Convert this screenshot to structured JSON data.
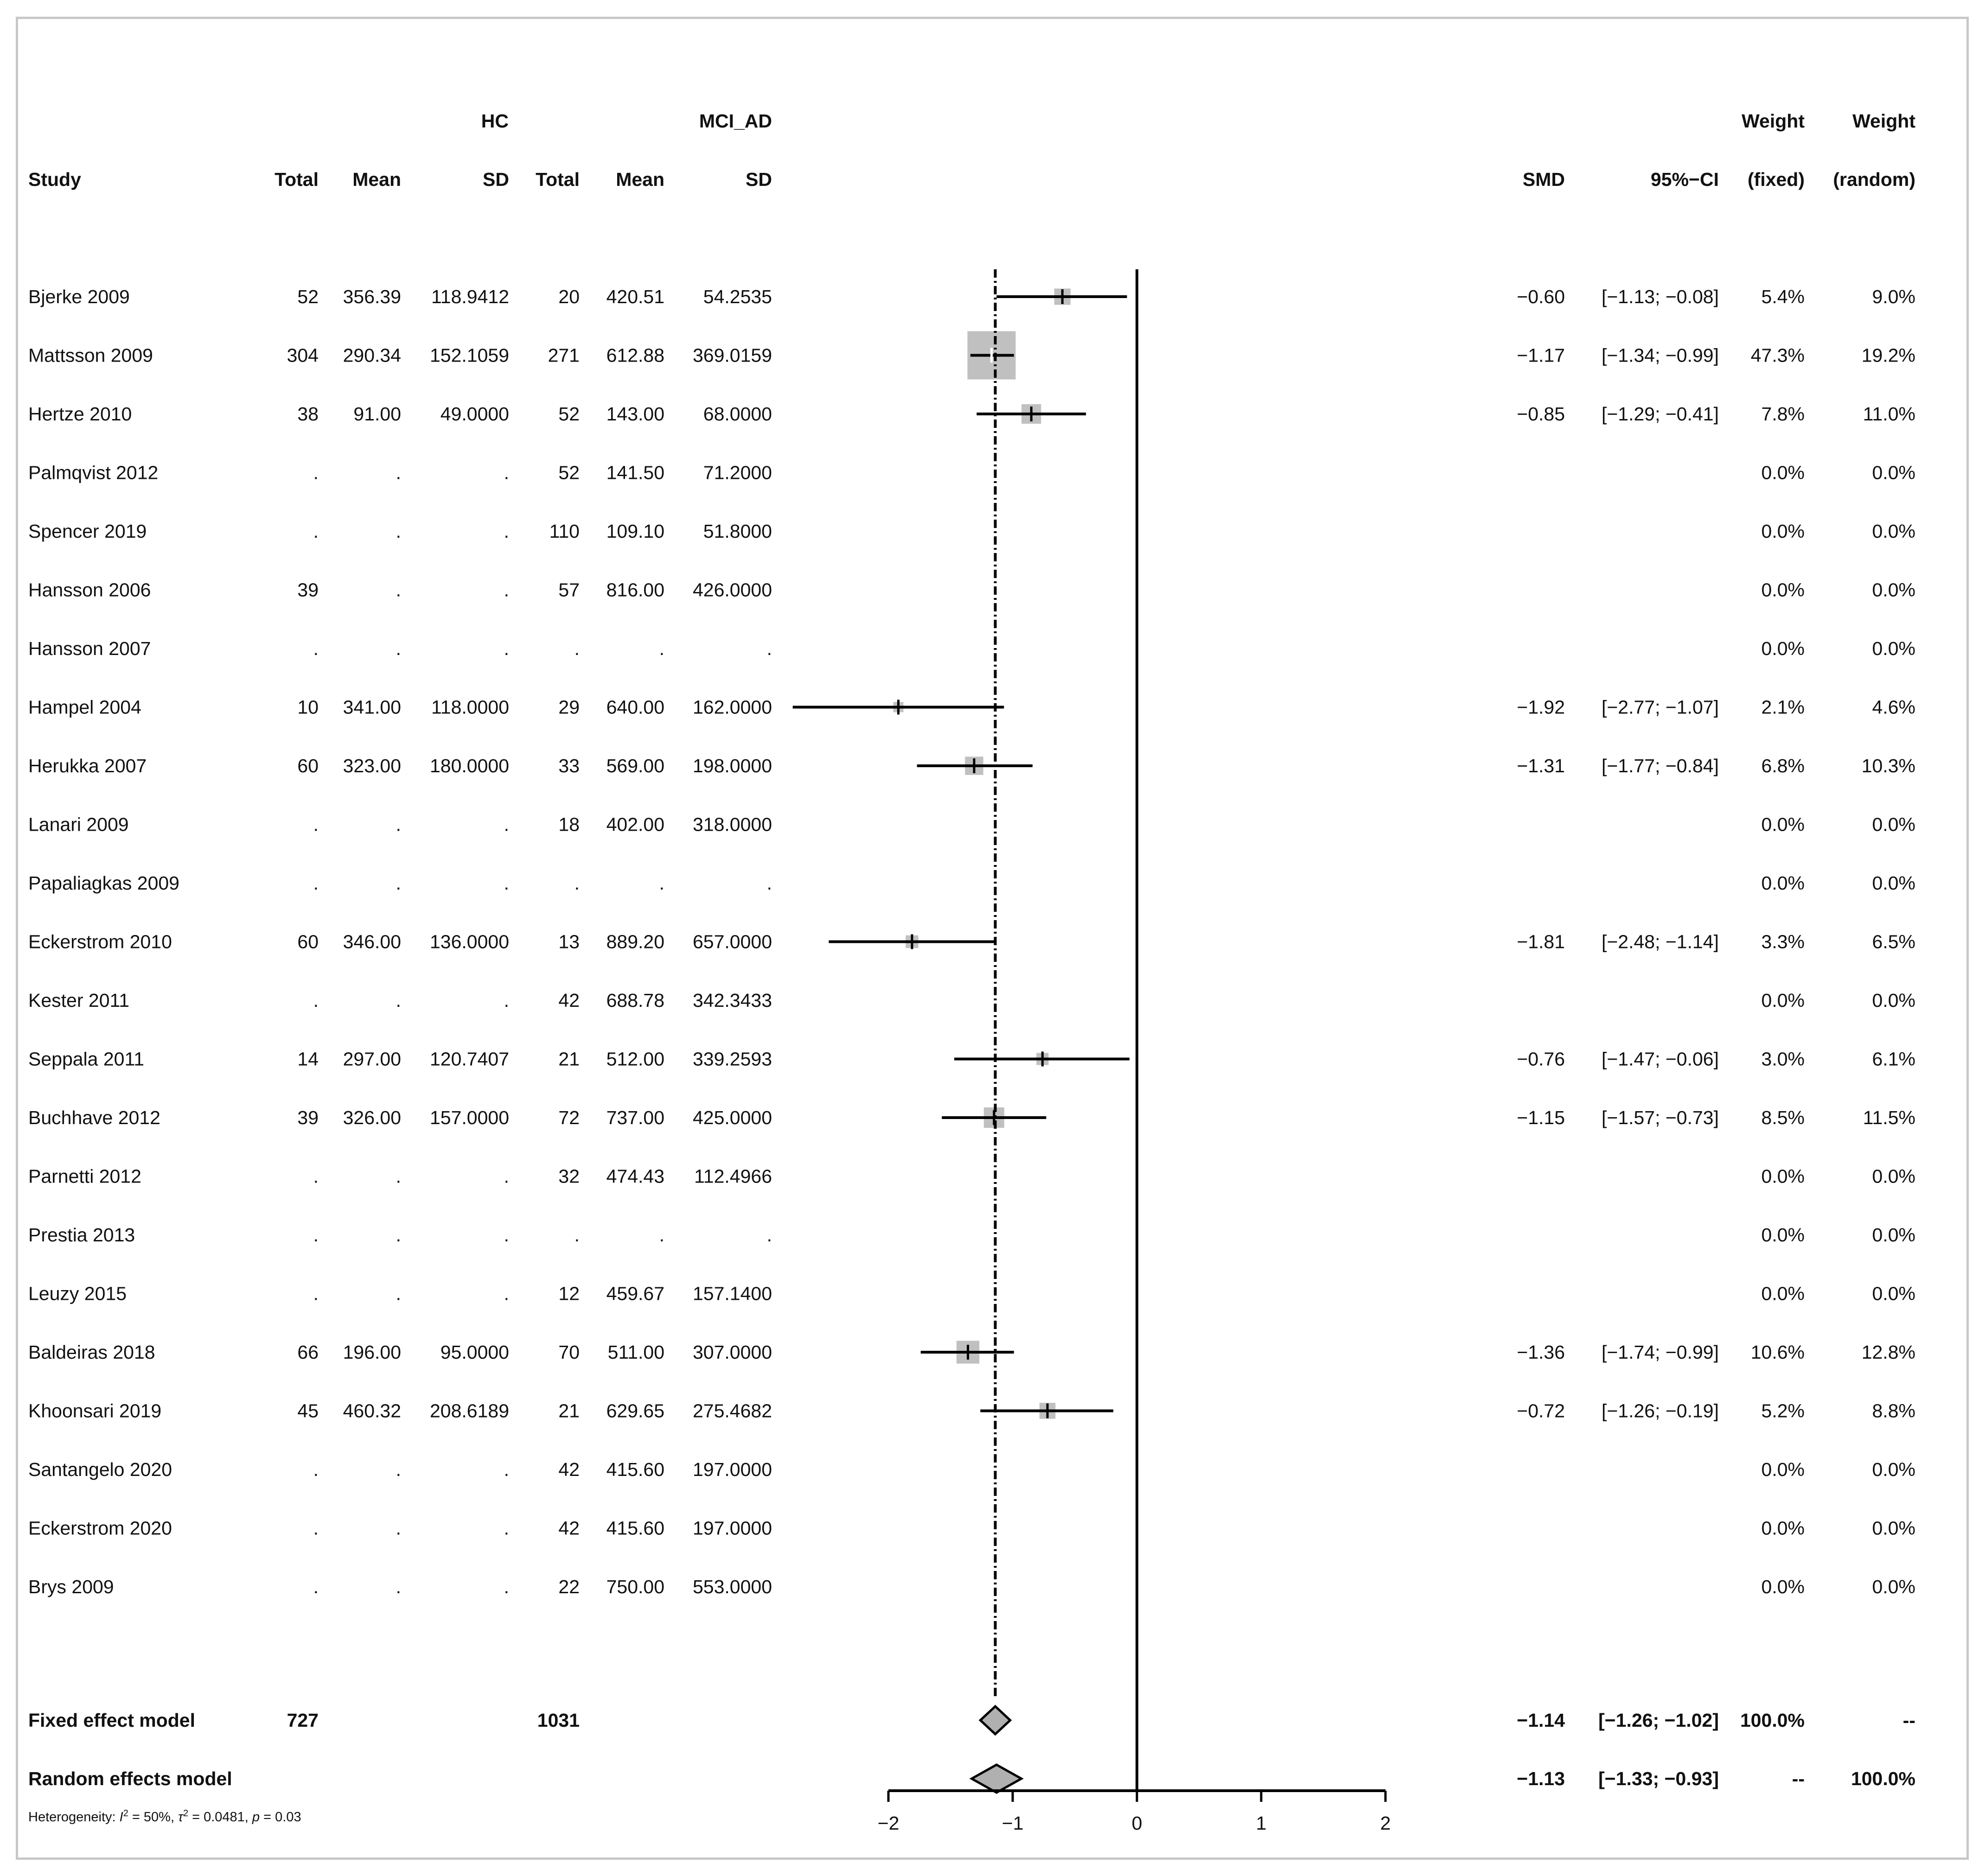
{
  "chart_data": {
    "type": "forest",
    "group1": "HC",
    "group2": "MCI_AD",
    "headers": {
      "study": "Study",
      "total": "Total",
      "mean": "Mean",
      "sd": "SD",
      "smd": "SMD",
      "ci": "95%−CI",
      "weight": "Weight",
      "fixed": "(fixed)",
      "random": "(random)"
    },
    "studies": [
      {
        "name": "Bjerke 2009",
        "hc_total": "52",
        "hc_mean": "356.39",
        "hc_sd": "118.9412",
        "ad_total": "20",
        "ad_mean": "420.51",
        "ad_sd": "54.2535",
        "smd_text": "−0.60",
        "ci_text": "[−1.13; −0.08]",
        "w_fixed": "5.4%",
        "w_random": "9.0%",
        "smd": -0.6,
        "lo": -1.13,
        "hi": -0.08,
        "weight": 5.4
      },
      {
        "name": "Mattsson 2009",
        "hc_total": "304",
        "hc_mean": "290.34",
        "hc_sd": "152.1059",
        "ad_total": "271",
        "ad_mean": "612.88",
        "ad_sd": "369.0159",
        "smd_text": "−1.17",
        "ci_text": "[−1.34; −0.99]",
        "w_fixed": "47.3%",
        "w_random": "19.2%",
        "smd": -1.17,
        "lo": -1.34,
        "hi": -0.99,
        "weight": 47.3
      },
      {
        "name": "Hertze 2010",
        "hc_total": "38",
        "hc_mean": "91.00",
        "hc_sd": "49.0000",
        "ad_total": "52",
        "ad_mean": "143.00",
        "ad_sd": "68.0000",
        "smd_text": "−0.85",
        "ci_text": "[−1.29; −0.41]",
        "w_fixed": "7.8%",
        "w_random": "11.0%",
        "smd": -0.85,
        "lo": -1.29,
        "hi": -0.41,
        "weight": 7.8
      },
      {
        "name": "Palmqvist 2012",
        "hc_total": ".",
        "hc_mean": ".",
        "hc_sd": ".",
        "ad_total": "52",
        "ad_mean": "141.50",
        "ad_sd": "71.2000",
        "smd_text": "",
        "ci_text": "",
        "w_fixed": "0.0%",
        "w_random": "0.0%"
      },
      {
        "name": "Spencer 2019",
        "hc_total": ".",
        "hc_mean": ".",
        "hc_sd": ".",
        "ad_total": "110",
        "ad_mean": "109.10",
        "ad_sd": "51.8000",
        "smd_text": "",
        "ci_text": "",
        "w_fixed": "0.0%",
        "w_random": "0.0%"
      },
      {
        "name": "Hansson 2006",
        "hc_total": "39",
        "hc_mean": ".",
        "hc_sd": ".",
        "ad_total": "57",
        "ad_mean": "816.00",
        "ad_sd": "426.0000",
        "smd_text": "",
        "ci_text": "",
        "w_fixed": "0.0%",
        "w_random": "0.0%"
      },
      {
        "name": "Hansson 2007",
        "hc_total": ".",
        "hc_mean": ".",
        "hc_sd": ".",
        "ad_total": ".",
        "ad_mean": ".",
        "ad_sd": ".",
        "smd_text": "",
        "ci_text": "",
        "w_fixed": "0.0%",
        "w_random": "0.0%"
      },
      {
        "name": "Hampel 2004",
        "hc_total": "10",
        "hc_mean": "341.00",
        "hc_sd": "118.0000",
        "ad_total": "29",
        "ad_mean": "640.00",
        "ad_sd": "162.0000",
        "smd_text": "−1.92",
        "ci_text": "[−2.77; −1.07]",
        "w_fixed": "2.1%",
        "w_random": "4.6%",
        "smd": -1.92,
        "lo": -2.77,
        "hi": -1.07,
        "weight": 2.1
      },
      {
        "name": "Herukka 2007",
        "hc_total": "60",
        "hc_mean": "323.00",
        "hc_sd": "180.0000",
        "ad_total": "33",
        "ad_mean": "569.00",
        "ad_sd": "198.0000",
        "smd_text": "−1.31",
        "ci_text": "[−1.77; −0.84]",
        "w_fixed": "6.8%",
        "w_random": "10.3%",
        "smd": -1.31,
        "lo": -1.77,
        "hi": -0.84,
        "weight": 6.8
      },
      {
        "name": "Lanari 2009",
        "hc_total": ".",
        "hc_mean": ".",
        "hc_sd": ".",
        "ad_total": "18",
        "ad_mean": "402.00",
        "ad_sd": "318.0000",
        "smd_text": "",
        "ci_text": "",
        "w_fixed": "0.0%",
        "w_random": "0.0%"
      },
      {
        "name": "Papaliagkas 2009",
        "hc_total": ".",
        "hc_mean": ".",
        "hc_sd": ".",
        "ad_total": ".",
        "ad_mean": ".",
        "ad_sd": ".",
        "smd_text": "",
        "ci_text": "",
        "w_fixed": "0.0%",
        "w_random": "0.0%"
      },
      {
        "name": "Eckerstrom 2010",
        "hc_total": "60",
        "hc_mean": "346.00",
        "hc_sd": "136.0000",
        "ad_total": "13",
        "ad_mean": "889.20",
        "ad_sd": "657.0000",
        "smd_text": "−1.81",
        "ci_text": "[−2.48; −1.14]",
        "w_fixed": "3.3%",
        "w_random": "6.5%",
        "smd": -1.81,
        "lo": -2.48,
        "hi": -1.14,
        "weight": 3.3
      },
      {
        "name": "Kester 2011",
        "hc_total": ".",
        "hc_mean": ".",
        "hc_sd": ".",
        "ad_total": "42",
        "ad_mean": "688.78",
        "ad_sd": "342.3433",
        "smd_text": "",
        "ci_text": "",
        "w_fixed": "0.0%",
        "w_random": "0.0%"
      },
      {
        "name": "Seppala 2011",
        "hc_total": "14",
        "hc_mean": "297.00",
        "hc_sd": "120.7407",
        "ad_total": "21",
        "ad_mean": "512.00",
        "ad_sd": "339.2593",
        "smd_text": "−0.76",
        "ci_text": "[−1.47; −0.06]",
        "w_fixed": "3.0%",
        "w_random": "6.1%",
        "smd": -0.76,
        "lo": -1.47,
        "hi": -0.06,
        "weight": 3.0
      },
      {
        "name": "Buchhave 2012",
        "hc_total": "39",
        "hc_mean": "326.00",
        "hc_sd": "157.0000",
        "ad_total": "72",
        "ad_mean": "737.00",
        "ad_sd": "425.0000",
        "smd_text": "−1.15",
        "ci_text": "[−1.57; −0.73]",
        "w_fixed": "8.5%",
        "w_random": "11.5%",
        "smd": -1.15,
        "lo": -1.57,
        "hi": -0.73,
        "weight": 8.5
      },
      {
        "name": "Parnetti 2012",
        "hc_total": ".",
        "hc_mean": ".",
        "hc_sd": ".",
        "ad_total": "32",
        "ad_mean": "474.43",
        "ad_sd": "112.4966",
        "smd_text": "",
        "ci_text": "",
        "w_fixed": "0.0%",
        "w_random": "0.0%"
      },
      {
        "name": "Prestia 2013",
        "hc_total": ".",
        "hc_mean": ".",
        "hc_sd": ".",
        "ad_total": ".",
        "ad_mean": ".",
        "ad_sd": ".",
        "smd_text": "",
        "ci_text": "",
        "w_fixed": "0.0%",
        "w_random": "0.0%"
      },
      {
        "name": "Leuzy 2015",
        "hc_total": ".",
        "hc_mean": ".",
        "hc_sd": ".",
        "ad_total": "12",
        "ad_mean": "459.67",
        "ad_sd": "157.1400",
        "smd_text": "",
        "ci_text": "",
        "w_fixed": "0.0%",
        "w_random": "0.0%"
      },
      {
        "name": "Baldeiras 2018",
        "hc_total": "66",
        "hc_mean": "196.00",
        "hc_sd": "95.0000",
        "ad_total": "70",
        "ad_mean": "511.00",
        "ad_sd": "307.0000",
        "smd_text": "−1.36",
        "ci_text": "[−1.74; −0.99]",
        "w_fixed": "10.6%",
        "w_random": "12.8%",
        "smd": -1.36,
        "lo": -1.74,
        "hi": -0.99,
        "weight": 10.6
      },
      {
        "name": "Khoonsari 2019",
        "hc_total": "45",
        "hc_mean": "460.32",
        "hc_sd": "208.6189",
        "ad_total": "21",
        "ad_mean": "629.65",
        "ad_sd": "275.4682",
        "smd_text": "−0.72",
        "ci_text": "[−1.26; −0.19]",
        "w_fixed": "5.2%",
        "w_random": "8.8%",
        "smd": -0.72,
        "lo": -1.26,
        "hi": -0.19,
        "weight": 5.2
      },
      {
        "name": "Santangelo 2020",
        "hc_total": ".",
        "hc_mean": ".",
        "hc_sd": ".",
        "ad_total": "42",
        "ad_mean": "415.60",
        "ad_sd": "197.0000",
        "smd_text": "",
        "ci_text": "",
        "w_fixed": "0.0%",
        "w_random": "0.0%"
      },
      {
        "name": "Eckerstrom 2020",
        "hc_total": ".",
        "hc_mean": ".",
        "hc_sd": ".",
        "ad_total": "42",
        "ad_mean": "415.60",
        "ad_sd": "197.0000",
        "smd_text": "",
        "ci_text": "",
        "w_fixed": "0.0%",
        "w_random": "0.0%"
      },
      {
        "name": "Brys 2009",
        "hc_total": ".",
        "hc_mean": ".",
        "hc_sd": ".",
        "ad_total": "22",
        "ad_mean": "750.00",
        "ad_sd": "553.0000",
        "smd_text": "",
        "ci_text": "",
        "w_fixed": "0.0%",
        "w_random": "0.0%"
      }
    ],
    "fixed": {
      "name": "Fixed effect model",
      "hc_total": "727",
      "ad_total": "1031",
      "smd_text": "−1.14",
      "ci_text": "[−1.26; −1.02]",
      "w_fixed": "100.0%",
      "w_random": "--",
      "smd": -1.14,
      "lo": -1.26,
      "hi": -1.02
    },
    "random": {
      "name": "Random effects model",
      "smd_text": "−1.13",
      "ci_text": "[−1.33; −0.93]",
      "w_fixed": "--",
      "w_random": "100.0%",
      "smd": -1.13,
      "lo": -1.33,
      "hi": -0.93
    },
    "heterogeneity": {
      "prefix": "Heterogeneity: ",
      "i2_label": "I",
      "i2_value": " = 50%, ",
      "tau_label": "τ",
      "tau_value": " = 0.0481, ",
      "p_label": "p",
      "p_value": " = 0.03"
    },
    "xaxis": {
      "ticks": [
        -2,
        -1,
        0,
        1,
        2
      ],
      "tick_labels": [
        "−2",
        "−1",
        "0",
        "1",
        "2"
      ],
      "xlim": [
        -2,
        2
      ]
    },
    "colors": {
      "square": "#c0c0c0",
      "diamond": "#b0b0b0",
      "line": "#000000"
    }
  }
}
